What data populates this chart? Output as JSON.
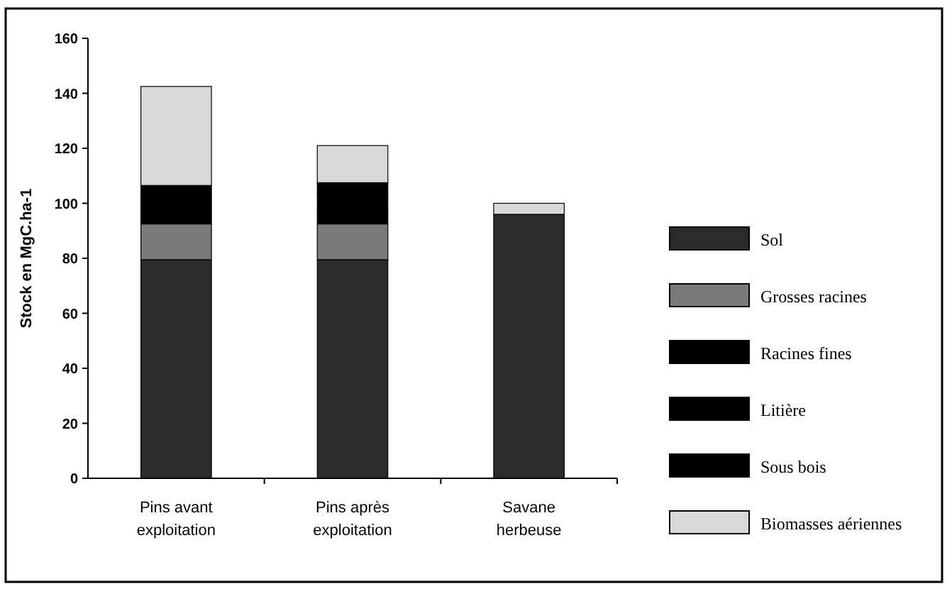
{
  "chart_data": {
    "type": "bar",
    "stacked": true,
    "ylabel": "Stock en MgC.ha-1",
    "categories": [
      "Pins avant exploitation",
      "Pins après exploitation",
      "Savane herbeuse"
    ],
    "ylim": [
      0,
      160
    ],
    "yticks": [
      0,
      20,
      40,
      60,
      80,
      100,
      120,
      140,
      160
    ],
    "legend": "right",
    "series": [
      {
        "name": "Sol",
        "color": "#2b2b2b",
        "values": [
          79.5,
          79.5,
          96
        ]
      },
      {
        "name": "Grosses racines",
        "color": "#7a7a7a",
        "values": [
          13,
          13,
          0
        ]
      },
      {
        "name": "Racines fines",
        "color": "#000000",
        "values": [
          5,
          5,
          0
        ]
      },
      {
        "name": "Litière",
        "color": "#000000",
        "values": [
          5,
          6,
          0
        ]
      },
      {
        "name": "Sous bois",
        "color": "#000000",
        "values": [
          4,
          4,
          0
        ]
      },
      {
        "name": "Biomasses aériennes",
        "color": "#d9d9d9",
        "values": [
          36,
          13.5,
          4
        ]
      }
    ]
  }
}
